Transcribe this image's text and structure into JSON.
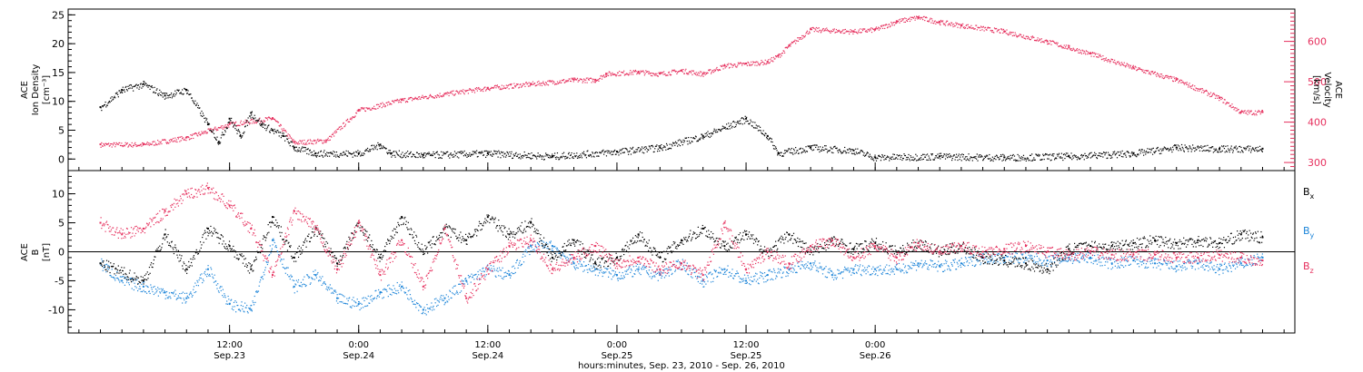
{
  "chart_data": [
    {
      "type": "scatter",
      "panel": "top",
      "ylabel_lines": [
        "ACE",
        "Ion Density",
        "[cm⁻³]"
      ],
      "ylim": [
        -2,
        26
      ],
      "yticks": [
        0,
        5,
        10,
        15,
        20,
        25
      ],
      "y2label_lines": [
        "ACE",
        "Velocity",
        "[km/s]"
      ],
      "y2lim": [
        280,
        680
      ],
      "y2ticks": [
        300,
        400,
        500,
        600
      ],
      "grid": false,
      "series": [
        {
          "axis": "left",
          "color": "#000000",
          "points": [
            [
              0,
              9
            ],
            [
              2,
              12
            ],
            [
              4,
              13
            ],
            [
              6,
              11
            ],
            [
              8,
              12
            ],
            [
              10,
              6
            ],
            [
              11,
              3
            ],
            [
              12,
              7
            ],
            [
              13,
              4
            ],
            [
              14,
              8
            ],
            [
              15,
              6
            ],
            [
              16,
              5
            ],
            [
              17,
              4
            ],
            [
              18,
              2
            ],
            [
              20,
              1
            ],
            [
              24,
              1
            ],
            [
              26,
              2.5
            ],
            [
              27,
              1
            ],
            [
              30,
              0.7
            ],
            [
              36,
              1
            ],
            [
              42,
              0.5
            ],
            [
              48,
              1.3
            ],
            [
              52,
              2
            ],
            [
              56,
              4
            ],
            [
              60,
              7
            ],
            [
              62,
              4
            ],
            [
              63,
              1
            ],
            [
              66,
              2
            ],
            [
              70,
              1.5
            ],
            [
              72,
              0.3
            ],
            [
              78,
              0.5
            ],
            [
              84,
              0.3
            ],
            [
              90,
              0.5
            ],
            [
              96,
              1
            ],
            [
              100,
              2
            ],
            [
              104,
              1.8
            ],
            [
              108,
              1.8
            ]
          ]
        },
        {
          "axis": "right",
          "color": "#e6305e",
          "points": [
            [
              0,
              345
            ],
            [
              4,
              345
            ],
            [
              8,
              362
            ],
            [
              12,
              395
            ],
            [
              16,
              410
            ],
            [
              18,
              350
            ],
            [
              21,
              355
            ],
            [
              24,
              430
            ],
            [
              28,
              455
            ],
            [
              32,
              470
            ],
            [
              36,
              485
            ],
            [
              40,
              495
            ],
            [
              44,
              505
            ],
            [
              46,
              505
            ],
            [
              47,
              520
            ],
            [
              50,
              525
            ],
            [
              52,
              520
            ],
            [
              54,
              528
            ],
            [
              56,
              520
            ],
            [
              58,
              540
            ],
            [
              60,
              545
            ],
            [
              62,
              550
            ],
            [
              63,
              565
            ],
            [
              64,
              590
            ],
            [
              66,
              630
            ],
            [
              70,
              625
            ],
            [
              72,
              630
            ],
            [
              74,
              650
            ],
            [
              76,
              660
            ],
            [
              78,
              648
            ],
            [
              80,
              640
            ],
            [
              84,
              625
            ],
            [
              88,
              600
            ],
            [
              90,
              585
            ],
            [
              92,
              570
            ],
            [
              96,
              535
            ],
            [
              100,
              505
            ],
            [
              104,
              460
            ],
            [
              106,
              425
            ],
            [
              108,
              425
            ]
          ]
        }
      ]
    },
    {
      "type": "scatter",
      "panel": "bottom",
      "ylabel_lines": [
        "ACE",
        "B",
        "[nT]"
      ],
      "ylim": [
        -14,
        14
      ],
      "yticks": [
        -10,
        -5,
        0,
        5,
        10
      ],
      "xlabel": "hours:minutes, Sep. 23, 2010 - Sep. 26, 2010",
      "xlim_hours_from_sep23_0000": [
        -3,
        111
      ],
      "xticks": [
        {
          "time": "12:00",
          "date": "Sep.23"
        },
        {
          "time": "0:00",
          "date": "Sep.24"
        },
        {
          "time": "12:00",
          "date": "Sep.24"
        },
        {
          "time": "0:00",
          "date": "Sep.25"
        },
        {
          "time": "12:00",
          "date": "Sep.25"
        },
        {
          "time": "0:00",
          "date": "Sep.26"
        }
      ],
      "legend": {
        "placement": "right",
        "entries": [
          {
            "main": "B",
            "sub": "x",
            "color": "#000000"
          },
          {
            "main": "B",
            "sub": "y",
            "color": "#1f86d9"
          },
          {
            "main": "B",
            "sub": "z",
            "color": "#e6305e"
          }
        ]
      },
      "series": [
        {
          "name": "Bx",
          "color": "#000000",
          "points": [
            [
              0,
              -2
            ],
            [
              4,
              -5
            ],
            [
              6,
              3
            ],
            [
              8,
              -3
            ],
            [
              10,
              4
            ],
            [
              12,
              1
            ],
            [
              14,
              -3
            ],
            [
              16,
              6
            ],
            [
              18,
              -1
            ],
            [
              20,
              4
            ],
            [
              22,
              -2
            ],
            [
              24,
              5
            ],
            [
              26,
              -1
            ],
            [
              28,
              6
            ],
            [
              30,
              0
            ],
            [
              32,
              4
            ],
            [
              34,
              2
            ],
            [
              36,
              6
            ],
            [
              38,
              3
            ],
            [
              40,
              5
            ],
            [
              42,
              -1
            ],
            [
              44,
              2
            ],
            [
              46,
              -2
            ],
            [
              48,
              -1
            ],
            [
              50,
              3
            ],
            [
              52,
              -1
            ],
            [
              54,
              2
            ],
            [
              56,
              4
            ],
            [
              58,
              1
            ],
            [
              60,
              3
            ],
            [
              62,
              0
            ],
            [
              64,
              3
            ],
            [
              66,
              0
            ],
            [
              68,
              2
            ],
            [
              70,
              0.5
            ],
            [
              72,
              1.5
            ],
            [
              74,
              0
            ],
            [
              76,
              1.5
            ],
            [
              78,
              0
            ],
            [
              80,
              1
            ],
            [
              82,
              -1
            ],
            [
              84,
              -1.5
            ],
            [
              86,
              -2
            ],
            [
              88,
              -3
            ],
            [
              90,
              0.5
            ],
            [
              92,
              1
            ],
            [
              94,
              1
            ],
            [
              96,
              1.5
            ],
            [
              98,
              2
            ],
            [
              100,
              1.5
            ],
            [
              102,
              2
            ],
            [
              104,
              1.5
            ],
            [
              106,
              3
            ],
            [
              108,
              2.5
            ]
          ]
        },
        {
          "name": "By",
          "color": "#1f86d9",
          "points": [
            [
              0,
              -2
            ],
            [
              2,
              -5
            ],
            [
              4,
              -6
            ],
            [
              6,
              -7
            ],
            [
              8,
              -8
            ],
            [
              10,
              -3
            ],
            [
              12,
              -9
            ],
            [
              14,
              -10
            ],
            [
              16,
              2
            ],
            [
              18,
              -6
            ],
            [
              20,
              -4
            ],
            [
              22,
              -8
            ],
            [
              24,
              -9
            ],
            [
              26,
              -7
            ],
            [
              28,
              -6
            ],
            [
              30,
              -10
            ],
            [
              32,
              -8
            ],
            [
              34,
              -5
            ],
            [
              36,
              -3
            ],
            [
              38,
              -4
            ],
            [
              40,
              1
            ],
            [
              42,
              1
            ],
            [
              44,
              -2
            ],
            [
              46,
              -3
            ],
            [
              48,
              -4
            ],
            [
              50,
              -3
            ],
            [
              52,
              -4
            ],
            [
              54,
              -2
            ],
            [
              56,
              -5
            ],
            [
              58,
              -3
            ],
            [
              60,
              -5
            ],
            [
              62,
              -4
            ],
            [
              64,
              -3
            ],
            [
              66,
              -2
            ],
            [
              68,
              -4
            ],
            [
              70,
              -3
            ],
            [
              72,
              -3
            ],
            [
              74,
              -3
            ],
            [
              76,
              -2
            ],
            [
              78,
              -2.5
            ],
            [
              80,
              -2
            ],
            [
              82,
              -1
            ],
            [
              84,
              -1
            ],
            [
              86,
              -1
            ],
            [
              88,
              -1.5
            ],
            [
              90,
              -1
            ],
            [
              92,
              -1
            ],
            [
              94,
              -2
            ],
            [
              96,
              -1.5
            ],
            [
              98,
              -2
            ],
            [
              100,
              -2.5
            ],
            [
              102,
              -2
            ],
            [
              104,
              -3
            ],
            [
              106,
              -2
            ],
            [
              108,
              -1
            ]
          ]
        },
        {
          "name": "Bz",
          "color": "#e6305e",
          "points": [
            [
              0,
              5
            ],
            [
              2,
              3
            ],
            [
              4,
              4
            ],
            [
              6,
              7
            ],
            [
              8,
              10
            ],
            [
              10,
              11
            ],
            [
              12,
              8
            ],
            [
              14,
              4
            ],
            [
              16,
              -4
            ],
            [
              18,
              7
            ],
            [
              20,
              4
            ],
            [
              22,
              -3
            ],
            [
              24,
              5
            ],
            [
              26,
              -4
            ],
            [
              28,
              2
            ],
            [
              30,
              -6
            ],
            [
              32,
              4
            ],
            [
              34,
              -8
            ],
            [
              36,
              -3
            ],
            [
              38,
              1
            ],
            [
              40,
              2
            ],
            [
              42,
              -3
            ],
            [
              44,
              -1
            ],
            [
              46,
              1
            ],
            [
              48,
              -2
            ],
            [
              50,
              -1
            ],
            [
              52,
              -3
            ],
            [
              54,
              -2
            ],
            [
              56,
              -4
            ],
            [
              58,
              5
            ],
            [
              60,
              -3
            ],
            [
              62,
              0
            ],
            [
              64,
              -2
            ],
            [
              66,
              1
            ],
            [
              68,
              2
            ],
            [
              70,
              -1
            ],
            [
              72,
              1
            ],
            [
              74,
              -1
            ],
            [
              76,
              1.5
            ],
            [
              78,
              0
            ],
            [
              80,
              1
            ],
            [
              82,
              0
            ],
            [
              84,
              0.5
            ],
            [
              86,
              1
            ],
            [
              88,
              0
            ],
            [
              90,
              -0.5
            ],
            [
              92,
              0
            ],
            [
              94,
              -0.5
            ],
            [
              96,
              -0.5
            ],
            [
              98,
              -0.5
            ],
            [
              100,
              -1
            ],
            [
              102,
              -1
            ],
            [
              104,
              -0.5
            ],
            [
              106,
              -1
            ],
            [
              108,
              -1.5
            ]
          ]
        }
      ]
    }
  ]
}
